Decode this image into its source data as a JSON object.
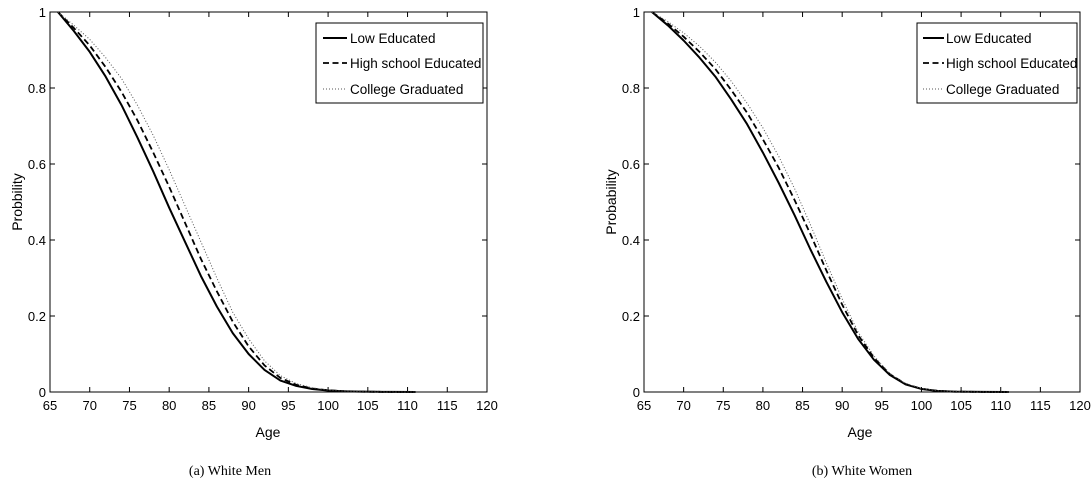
{
  "chart_data": [
    {
      "type": "line",
      "caption": "(a) White Men",
      "xlabel": "Age",
      "ylabel": "Probbility",
      "xlim": [
        65,
        120
      ],
      "ylim": [
        0,
        1
      ],
      "xticks": [
        65,
        70,
        75,
        80,
        85,
        90,
        95,
        100,
        105,
        110,
        115,
        120
      ],
      "yticks": [
        0,
        0.2,
        0.4,
        0.6,
        0.8,
        1
      ],
      "legend_position": "top-right",
      "x": [
        66,
        68,
        70,
        72,
        74,
        76,
        78,
        80,
        82,
        84,
        86,
        88,
        90,
        92,
        94,
        96,
        98,
        100,
        102,
        104,
        106,
        108,
        111
      ],
      "series": [
        {
          "name": "Low Educated",
          "style": "solid",
          "values": [
            1.0,
            0.95,
            0.895,
            0.83,
            0.755,
            0.67,
            0.58,
            0.485,
            0.395,
            0.305,
            0.225,
            0.155,
            0.1,
            0.058,
            0.03,
            0.016,
            0.008,
            0.004,
            0.002,
            0.001,
            0.0005,
            0.0002,
            0.0
          ]
        },
        {
          "name": "High school Educated",
          "style": "dashed",
          "values": [
            1.0,
            0.958,
            0.912,
            0.855,
            0.79,
            0.715,
            0.63,
            0.54,
            0.445,
            0.35,
            0.265,
            0.185,
            0.12,
            0.07,
            0.037,
            0.019,
            0.009,
            0.0045,
            0.002,
            0.001,
            0.0005,
            0.0002,
            0.0
          ]
        },
        {
          "name": "College Graduated",
          "style": "dotted",
          "values": [
            1.0,
            0.965,
            0.928,
            0.88,
            0.825,
            0.755,
            0.675,
            0.585,
            0.49,
            0.395,
            0.3,
            0.21,
            0.14,
            0.082,
            0.043,
            0.022,
            0.011,
            0.005,
            0.0025,
            0.001,
            0.0005,
            0.0002,
            0.0
          ]
        }
      ]
    },
    {
      "type": "line",
      "caption": "(b) White Women",
      "xlabel": "Age",
      "ylabel": "Probability",
      "xlim": [
        65,
        120
      ],
      "ylim": [
        0,
        1
      ],
      "xticks": [
        65,
        70,
        75,
        80,
        85,
        90,
        95,
        100,
        105,
        110,
        115,
        120
      ],
      "yticks": [
        0,
        0.2,
        0.4,
        0.6,
        0.8,
        1
      ],
      "legend_position": "top-right",
      "x": [
        66,
        68,
        70,
        72,
        74,
        76,
        78,
        80,
        82,
        84,
        86,
        88,
        90,
        92,
        94,
        96,
        98,
        100,
        102,
        104,
        106,
        108,
        111
      ],
      "series": [
        {
          "name": "Low Educated",
          "style": "solid",
          "values": [
            1.0,
            0.965,
            0.925,
            0.88,
            0.83,
            0.77,
            0.705,
            0.63,
            0.55,
            0.465,
            0.375,
            0.29,
            0.21,
            0.14,
            0.085,
            0.045,
            0.02,
            0.008,
            0.003,
            0.001,
            0.0005,
            0.0002,
            0.0
          ]
        },
        {
          "name": "High school Educated",
          "style": "dashed",
          "values": [
            1.0,
            0.97,
            0.935,
            0.895,
            0.85,
            0.795,
            0.735,
            0.665,
            0.59,
            0.505,
            0.415,
            0.32,
            0.23,
            0.15,
            0.09,
            0.047,
            0.021,
            0.0085,
            0.003,
            0.001,
            0.0005,
            0.0002,
            0.0
          ]
        },
        {
          "name": "College Graduated",
          "style": "dotted",
          "values": [
            1.0,
            0.975,
            0.945,
            0.91,
            0.868,
            0.818,
            0.76,
            0.695,
            0.62,
            0.535,
            0.44,
            0.34,
            0.245,
            0.158,
            0.095,
            0.049,
            0.022,
            0.009,
            0.0035,
            0.001,
            0.0005,
            0.0002,
            0.0
          ]
        }
      ]
    }
  ]
}
